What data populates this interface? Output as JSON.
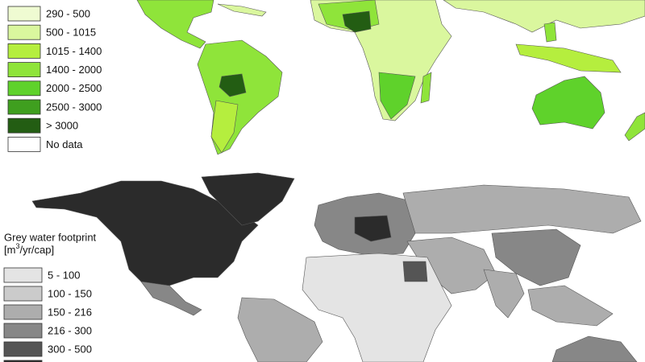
{
  "top_legend": {
    "items": [
      {
        "label": "290 - 500",
        "color": "#effbd2"
      },
      {
        "label": "500 - 1015",
        "color": "#daf79e"
      },
      {
        "label": "1015 - 1400",
        "color": "#b5ee3e"
      },
      {
        "label": "1400 - 2000",
        "color": "#8fe43a"
      },
      {
        "label": "2000 - 2500",
        "color": "#5fd22b"
      },
      {
        "label": "2500 - 3000",
        "color": "#3f9f1f"
      },
      {
        "label": "> 3000",
        "color": "#235d13"
      },
      {
        "label": "No data",
        "color": "#ffffff"
      }
    ]
  },
  "bottom_legend": {
    "title": "Grey water footprint",
    "unit_prefix": "[m",
    "unit_sup": "3",
    "unit_suffix": "/yr/cap]",
    "items": [
      {
        "label": "5 - 100",
        "color": "#e4e4e4"
      },
      {
        "label": "100 - 150",
        "color": "#cbcbcb"
      },
      {
        "label": "150 - 216",
        "color": "#adadad"
      },
      {
        "label": "216 - 300",
        "color": "#878787"
      },
      {
        "label": "300 - 500",
        "color": "#555555"
      },
      {
        "label": "",
        "color": "#2b2b2b"
      }
    ]
  }
}
